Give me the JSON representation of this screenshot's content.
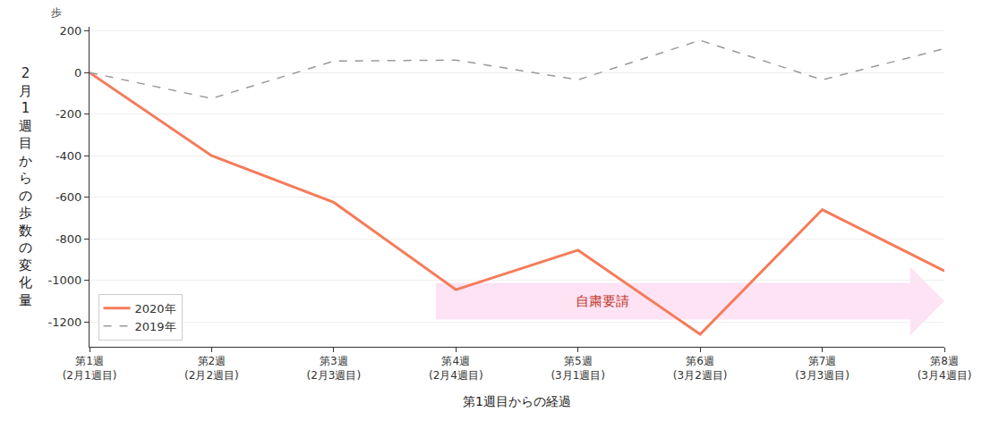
{
  "chart_data": {
    "type": "line",
    "y_label": "2月1週目からの歩数の変化量",
    "y_unit": "歩",
    "x_label": "第1週目からの経過",
    "categories": [
      "第1週\n(2月1週目)",
      "第2週\n(2月2週目)",
      "第3週\n(2月3週目)",
      "第4週\n(2月4週目)",
      "第5週\n(3月1週目)",
      "第6週\n(3月2週目)",
      "第7週\n(3月3週目)",
      "第8週\n(3月4週目)"
    ],
    "series": [
      {
        "name": "2020年",
        "color": "#f47c5a",
        "line_style": "solid",
        "values": [
          0,
          -400,
          -625,
          -1045,
          -855,
          -1260,
          -660,
          -955
        ]
      },
      {
        "name": "2019年",
        "color": "#999999",
        "line_style": "dash",
        "values": [
          0,
          -125,
          55,
          60,
          -35,
          155,
          -35,
          115
        ]
      }
    ],
    "ylim": [
      -1320,
      220
    ],
    "yticks": [
      -1200,
      -1000,
      -800,
      -600,
      -400,
      -200,
      0,
      200
    ],
    "grid": true,
    "legend": "lower left",
    "annotations": [
      {
        "text": "自粛要請"
      }
    ]
  }
}
